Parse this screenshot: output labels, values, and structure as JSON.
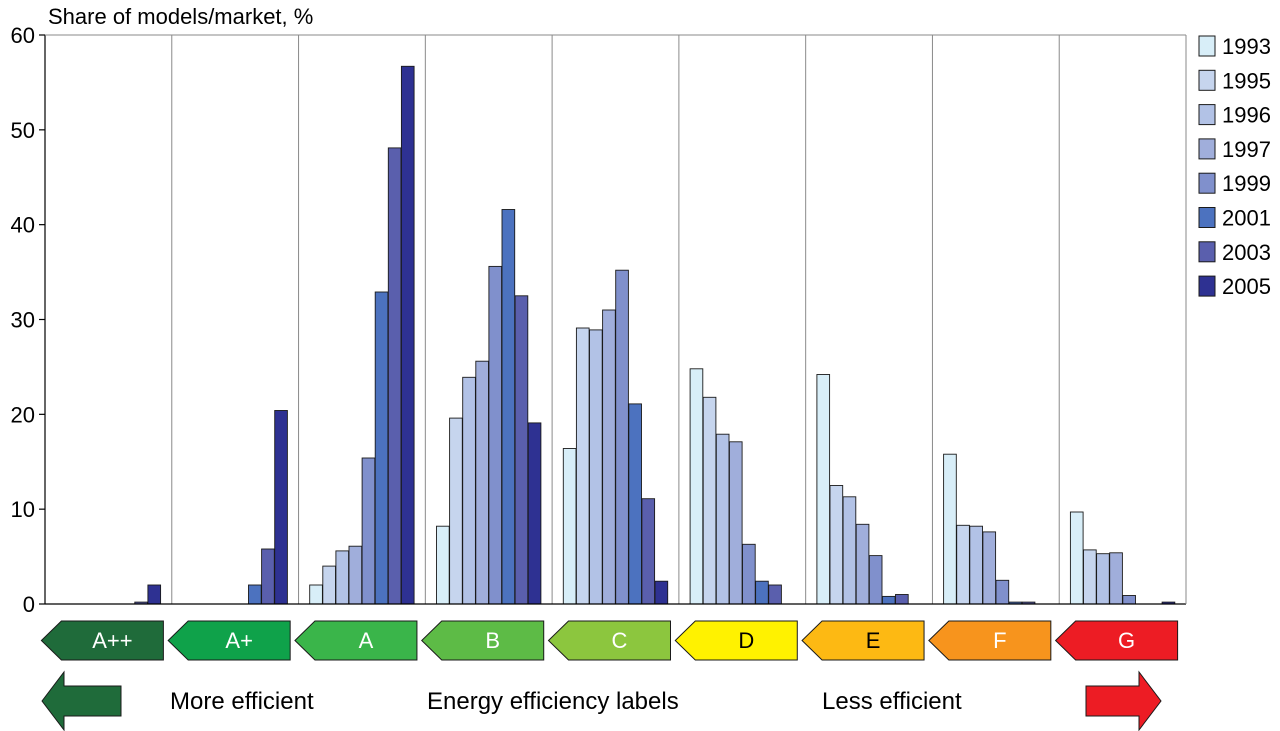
{
  "chart_data": {
    "type": "bar",
    "ylabel": "Share of models/market, %",
    "ylim": [
      0,
      60
    ],
    "yticks": [
      0,
      10,
      20,
      30,
      40,
      50,
      60
    ],
    "categories": [
      "A++",
      "A+",
      "A",
      "B",
      "C",
      "D",
      "E",
      "F",
      "G"
    ],
    "category_colors": [
      "#1f6b3a",
      "#0fa24a",
      "#3ab54a",
      "#5dbb46",
      "#8cc63e",
      "#fff200",
      "#fdb913",
      "#f7941d",
      "#ed1c24"
    ],
    "category_text_colors": [
      "#ffffff",
      "#ffffff",
      "#ffffff",
      "#ffffff",
      "#ffffff",
      "#000000",
      "#000000",
      "#ffffff",
      "#ffffff"
    ],
    "legend_position": "right",
    "grid": "vertical separators between categories",
    "series": [
      {
        "name": "1993",
        "color": "#d8eef8",
        "values": [
          0,
          0,
          2.0,
          8.2,
          16.4,
          24.8,
          24.2,
          15.8,
          9.7
        ]
      },
      {
        "name": "1995",
        "color": "#c6d5ee",
        "values": [
          0,
          0,
          4.0,
          19.6,
          29.1,
          21.8,
          12.5,
          8.3,
          5.7
        ]
      },
      {
        "name": "1996",
        "color": "#b2c2e6",
        "values": [
          0,
          0,
          5.6,
          23.9,
          28.9,
          17.9,
          11.3,
          8.2,
          5.3
        ]
      },
      {
        "name": "1997",
        "color": "#a0aedb",
        "values": [
          0,
          0,
          6.1,
          25.6,
          31.0,
          17.1,
          8.4,
          7.6,
          5.4
        ]
      },
      {
        "name": "1999",
        "color": "#8090cc",
        "values": [
          0,
          0,
          15.4,
          35.6,
          35.2,
          6.3,
          5.1,
          2.5,
          0.9
        ]
      },
      {
        "name": "2001",
        "color": "#4c72bf",
        "values": [
          0,
          2.0,
          32.9,
          41.6,
          21.1,
          2.4,
          0.8,
          0.2,
          0
        ]
      },
      {
        "name": "2003",
        "color": "#5a5fad",
        "values": [
          0.2,
          5.8,
          48.1,
          32.5,
          11.1,
          2.0,
          1.0,
          0.2,
          0
        ]
      },
      {
        "name": "2005",
        "color": "#2e3192",
        "values": [
          2.0,
          20.4,
          56.7,
          19.1,
          2.4,
          0,
          0,
          0,
          0.2
        ]
      }
    ],
    "annotations": {
      "more_efficient": "More efficient",
      "energy_labels": "Energy efficiency labels",
      "less_efficient": "Less efficient"
    },
    "arrow_colors": {
      "left": "#1f6b3a",
      "right": "#ed1c24"
    }
  }
}
